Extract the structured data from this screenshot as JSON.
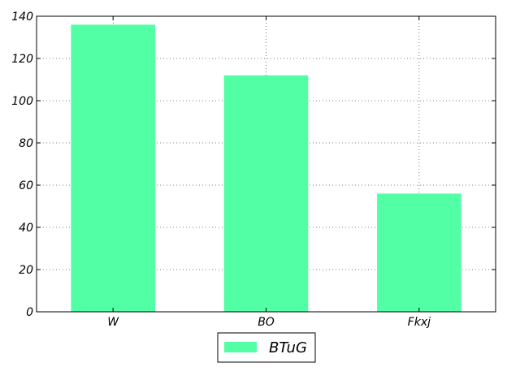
{
  "chart_data": {
    "type": "bar",
    "categories": [
      "W",
      "BO",
      "Fkxj"
    ],
    "series": [
      {
        "name": "BTuG",
        "values": [
          136,
          112,
          56
        ],
        "color": "#52ffa4"
      }
    ],
    "ylim": [
      0,
      140
    ],
    "yticks": [
      0,
      20,
      40,
      60,
      80,
      100,
      120,
      140
    ],
    "grid": true,
    "legend": "bottom-center",
    "title": "",
    "xlabel": "",
    "ylabel": ""
  }
}
